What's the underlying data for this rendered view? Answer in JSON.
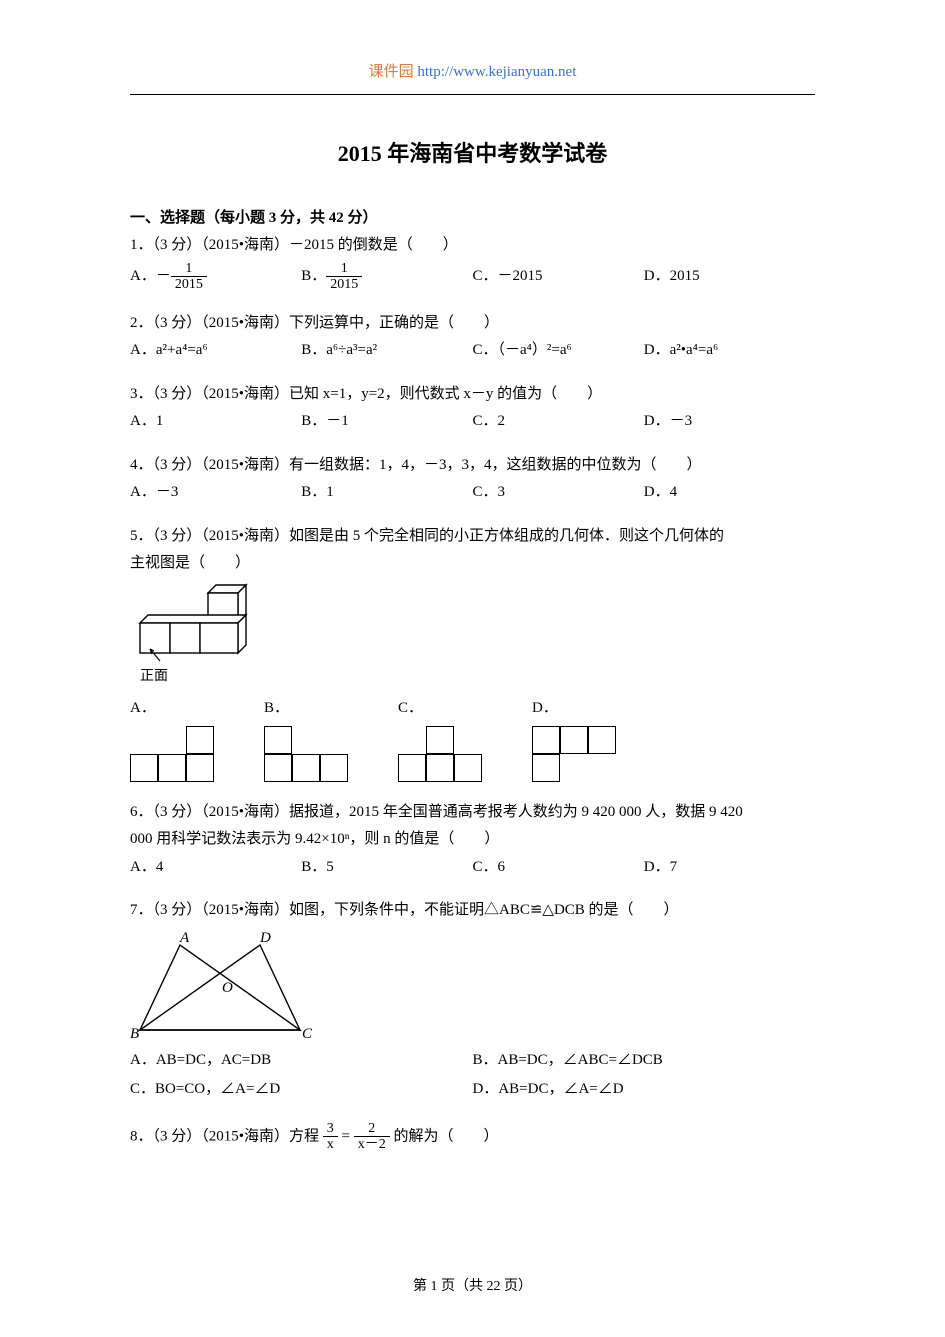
{
  "header": {
    "brand": "课件园",
    "url": "http://www.kejianyuan.net"
  },
  "title": "2015 年海南省中考数学试卷",
  "section": "一、选择题（每小题 3 分，共 42 分）",
  "footer": "第 1 页（共 22 页）",
  "q1": {
    "text": "1．（3 分）（2015•海南）－2015 的倒数是（　　）",
    "A": "A．",
    "B": "B．",
    "C": "C．－2015",
    "D": "D．2015",
    "fracA_num": "1",
    "fracA_den": "2015",
    "fracB_num": "1",
    "fracB_den": "2015",
    "neg": "－"
  },
  "q2": {
    "text": "2．（3 分）（2015•海南）下列运算中，正确的是（　　）",
    "A": "A．a²+a⁴=a⁶",
    "B": "B．a⁶÷a³=a²",
    "C": "C．（－a⁴）²=a⁶",
    "D": "D．a²•a⁴=a⁶"
  },
  "q3": {
    "text": "3．（3 分）（2015•海南）已知 x=1，y=2，则代数式 x－y 的值为（　　）",
    "A": "A．1",
    "B": "B．－1",
    "C": "C．2",
    "D": "D．－3"
  },
  "q4": {
    "text": "4．（3 分）（2015•海南）有一组数据：1，4，－3，3，4，这组数据的中位数为（　　）",
    "A": "A．－3",
    "B": "B．1",
    "C": "C．3",
    "D": "D．4"
  },
  "q5": {
    "text1": "5．（3 分）（2015•海南）如图是由 5 个完全相同的小正方体组成的几何体．则这个几何体的",
    "text2": "主视图是（　　）",
    "frontLabel": "正面",
    "A": "A．",
    "B": "B．",
    "C": "C．",
    "D": "D．",
    "shapes": {
      "A": [
        [
          0,
          0,
          1
        ],
        [
          1,
          1,
          1
        ]
      ],
      "B": [
        [
          1,
          0,
          0
        ],
        [
          1,
          1,
          1
        ]
      ],
      "C": [
        [
          0,
          1,
          0
        ],
        [
          1,
          1,
          1
        ]
      ],
      "D": [
        [
          1,
          1,
          1
        ],
        [
          1,
          0,
          0
        ]
      ]
    },
    "cellSize": 28,
    "border": "#000000"
  },
  "q6": {
    "text1": "6．（3 分）（2015•海南）据报道，2015 年全国普通高考报考人数约为 9 420 000 人，数据 9 420",
    "text2": "000 用科学记数法表示为 9.42×10ⁿ，则 n 的值是（　　）",
    "A": "A．4",
    "B": "B．5",
    "C": "C．6",
    "D": "D．7"
  },
  "q7": {
    "text": "7．（3 分）（2015•海南）如图，下列条件中，不能证明△ABC≌△DCB 的是（　　）",
    "A": "A．AB=DC，AC=DB",
    "B": "B．AB=DC，∠ABC=∠DCB",
    "C": "C．BO=CO，∠A=∠D",
    "D": "D．AB=DC，∠A=∠D",
    "labels": {
      "A": "A",
      "B": "B",
      "C": "C",
      "D": "D",
      "O": "O"
    }
  },
  "q8": {
    "prefix": "8．（3 分）（2015•海南）方程",
    "suffix": "的解为（　　）",
    "lhs_num": "3",
    "lhs_den": "x",
    "rhs_num": "2",
    "rhs_den": "x－2",
    "eq": "="
  }
}
